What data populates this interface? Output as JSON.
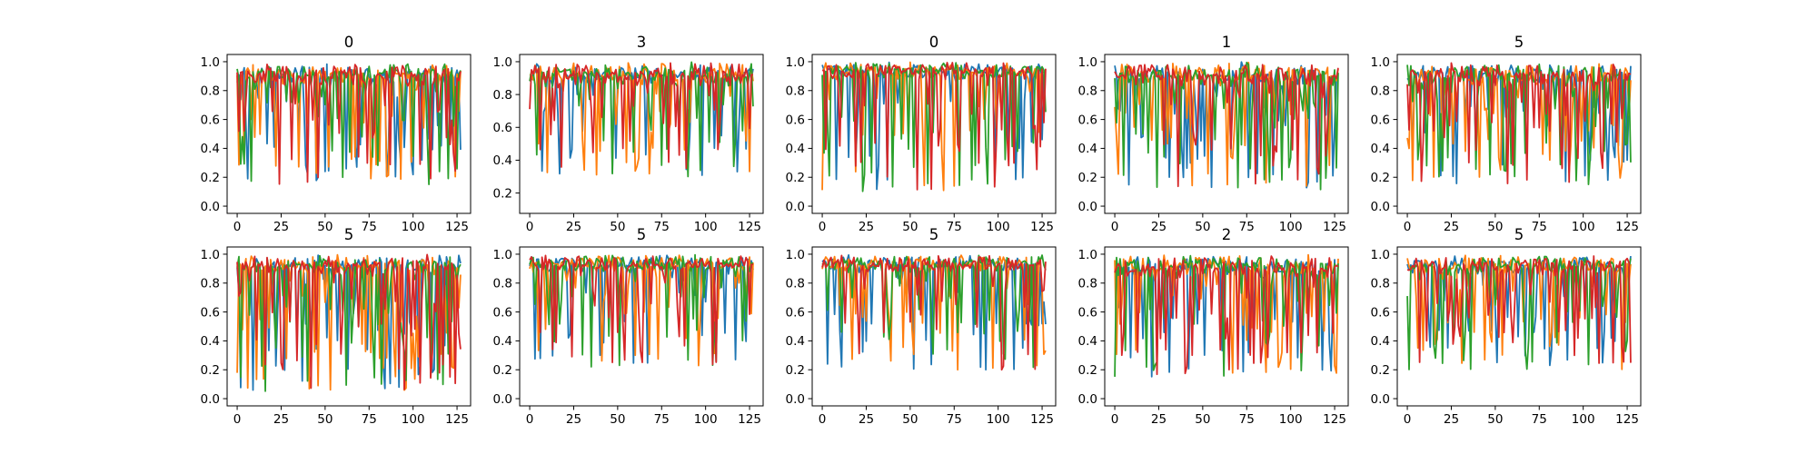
{
  "figure": {
    "panel_titles": [
      "0",
      "3",
      "0",
      "1",
      "5",
      "5",
      "5",
      "5",
      "2",
      "5"
    ]
  },
  "chart_data": {
    "type": "line",
    "layout": "2x5 grid of line plots",
    "series_colors": [
      "#1f77b4",
      "#ff7f0e",
      "#2ca02c",
      "#d62728"
    ],
    "series_count_per_panel": 4,
    "points_per_series": 128,
    "xlim": [
      0,
      127
    ],
    "x_ticks": [
      0,
      25,
      50,
      75,
      100,
      125
    ],
    "grid": false,
    "legend": "none",
    "panels": [
      {
        "title": "0",
        "ylim": [
          0.0,
          1.0
        ],
        "y_ticks": [
          0.0,
          0.2,
          0.4,
          0.6,
          0.8,
          1.0
        ],
        "style": {
          "base": 0.9,
          "amp": 0.85,
          "dipProb": 0.55,
          "late": 0.3
        }
      },
      {
        "title": "3",
        "ylim": [
          0.12,
          1.0
        ],
        "y_ticks": [
          0.2,
          0.4,
          0.6,
          0.8,
          1.0
        ],
        "style": {
          "base": 0.92,
          "amp": 0.7,
          "dipProb": 0.45,
          "late": 0.2
        }
      },
      {
        "title": "0",
        "ylim": [
          0.0,
          1.0
        ],
        "y_ticks": [
          0.0,
          0.2,
          0.4,
          0.6,
          0.8,
          1.0
        ],
        "style": {
          "base": 0.95,
          "amp": 0.9,
          "dipProb": 0.4,
          "late": 0.1
        }
      },
      {
        "title": "1",
        "ylim": [
          0.0,
          1.0
        ],
        "y_ticks": [
          0.0,
          0.2,
          0.4,
          0.6,
          0.8,
          1.0
        ],
        "style": {
          "base": 0.9,
          "amp": 0.9,
          "dipProb": 0.55,
          "late": 0.2
        }
      },
      {
        "title": "5",
        "ylim": [
          0.0,
          1.0
        ],
        "y_ticks": [
          0.0,
          0.2,
          0.4,
          0.6,
          0.8,
          1.0
        ],
        "style": {
          "base": 0.9,
          "amp": 0.85,
          "dipProb": 0.6,
          "late": 0.4
        }
      },
      {
        "title": "5",
        "ylim": [
          0.0,
          1.0
        ],
        "y_ticks": [
          0.0,
          0.2,
          0.4,
          0.6,
          0.8,
          1.0
        ],
        "style": {
          "base": 0.92,
          "amp": 0.95,
          "dipProb": 0.6,
          "late": 0.3
        }
      },
      {
        "title": "5",
        "ylim": [
          0.0,
          1.0
        ],
        "y_ticks": [
          0.0,
          0.2,
          0.4,
          0.6,
          0.8,
          1.0
        ],
        "style": {
          "base": 0.95,
          "amp": 0.8,
          "dipProb": 0.45,
          "late": 0.2
        }
      },
      {
        "title": "5",
        "ylim": [
          0.0,
          1.0
        ],
        "y_ticks": [
          0.0,
          0.2,
          0.4,
          0.6,
          0.8,
          1.0
        ],
        "style": {
          "base": 0.95,
          "amp": 0.8,
          "dipProb": 0.45,
          "late": 0.0
        }
      },
      {
        "title": "2",
        "ylim": [
          0.0,
          1.0
        ],
        "y_ticks": [
          0.0,
          0.2,
          0.4,
          0.6,
          0.8,
          1.0
        ],
        "style": {
          "base": 0.9,
          "amp": 0.85,
          "dipProb": 0.65,
          "late": 0.1
        }
      },
      {
        "title": "5",
        "ylim": [
          0.0,
          1.0
        ],
        "y_ticks": [
          0.0,
          0.2,
          0.4,
          0.6,
          0.8,
          1.0
        ],
        "style": {
          "base": 0.92,
          "amp": 0.8,
          "dipProb": 0.6,
          "late": 0.1
        }
      }
    ]
  }
}
